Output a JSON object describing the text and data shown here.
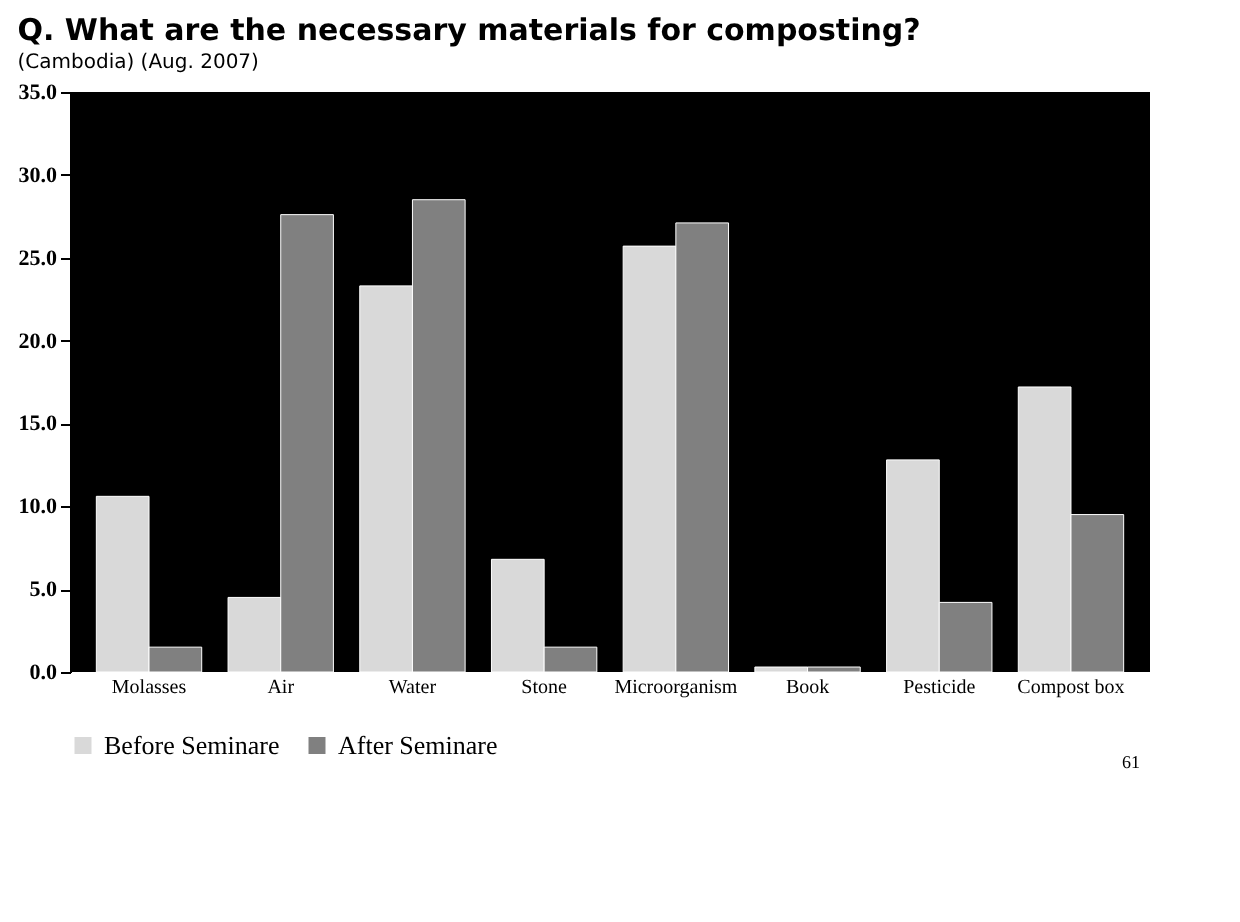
{
  "chart_data": {
    "type": "bar",
    "title": "Q. What are the necessary materials for composting?",
    "subtitle": "(Cambodia) (Aug. 2007)",
    "categories": [
      "Molasses",
      "Air",
      "Water",
      "Stone",
      "Microorganism",
      "Book",
      "Pesticide",
      "Compost box"
    ],
    "series": [
      {
        "name": "Before Seminare",
        "color": "#d9d9d9",
        "values": [
          10.6,
          4.5,
          23.3,
          6.8,
          25.7,
          0.3,
          12.8,
          17.2
        ]
      },
      {
        "name": "After Seminare",
        "color": "#808080",
        "values": [
          1.5,
          27.6,
          28.5,
          1.5,
          27.1,
          0.3,
          4.2,
          9.5
        ]
      }
    ],
    "ylim": [
      0,
      35
    ],
    "yticks": [
      {
        "value": 0,
        "label": "0.0"
      },
      {
        "value": 5,
        "label": "5.0"
      },
      {
        "value": 10,
        "label": "10.0"
      },
      {
        "value": 15,
        "label": "15.0"
      },
      {
        "value": 20,
        "label": "20.0"
      },
      {
        "value": 25,
        "label": "25.0"
      },
      {
        "value": 30,
        "label": "30.0"
      },
      {
        "value": 35,
        "label": "35.0"
      }
    ],
    "grid": false,
    "legend": "bottom",
    "annotations": [
      "61"
    ]
  }
}
